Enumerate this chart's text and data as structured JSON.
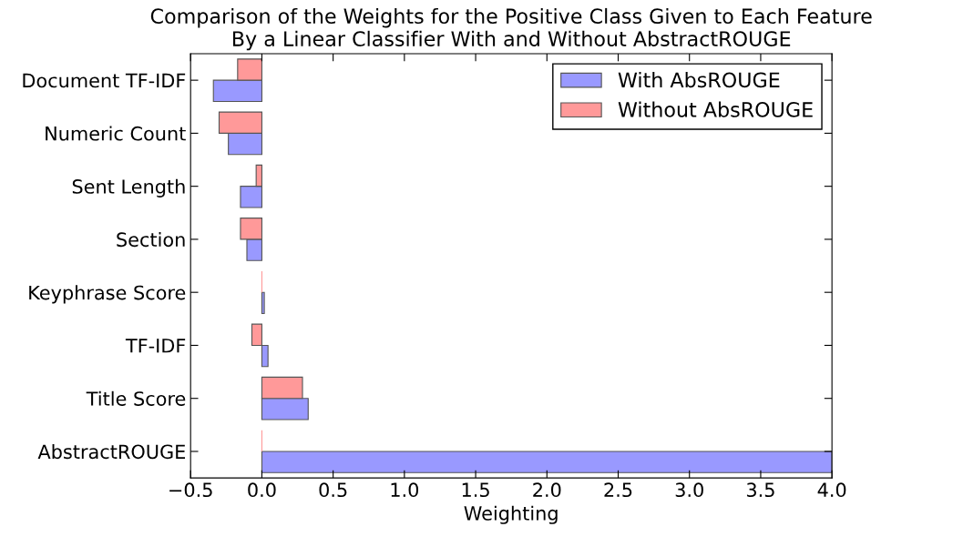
{
  "chart_data": {
    "type": "bar",
    "orientation": "horizontal",
    "title": "Comparison of the Weights for the Positive Class Given to Each Feature\nBy a Linear Classifier With and Without AbstractROUGE",
    "xlabel": "Weighting",
    "categories": [
      "Document TF-IDF",
      "Numeric Count",
      "Sent Length",
      "Section",
      "Keyphrase Score",
      "TF-IDF",
      "Title Score",
      "AbstractROUGE"
    ],
    "series": [
      {
        "name": "With AbsROUGE",
        "color": "#9999ff",
        "values": [
          -0.34,
          -0.235,
          -0.15,
          -0.105,
          0.017,
          0.043,
          0.325,
          4.0
        ]
      },
      {
        "name": "Without AbsROUGE",
        "color": "#ff9999",
        "values": [
          -0.17,
          -0.3,
          -0.04,
          -0.15,
          0.0,
          -0.07,
          0.285,
          0.0
        ]
      }
    ],
    "xlim": [
      -0.5,
      4.0
    ],
    "xticks": [
      {
        "value": -0.5,
        "label": "−0.5"
      },
      {
        "value": 0,
        "label": "0.0"
      },
      {
        "value": 0.5,
        "label": "0.5"
      },
      {
        "value": 1,
        "label": "1.0"
      },
      {
        "value": 1.5,
        "label": "1.5"
      },
      {
        "value": 2,
        "label": "2.0"
      },
      {
        "value": 2.5,
        "label": "2.5"
      },
      {
        "value": 3,
        "label": "3.0"
      },
      {
        "value": 3.5,
        "label": "3.5"
      },
      {
        "value": 4,
        "label": "4.0"
      }
    ],
    "grid": false,
    "legend": "top right"
  }
}
